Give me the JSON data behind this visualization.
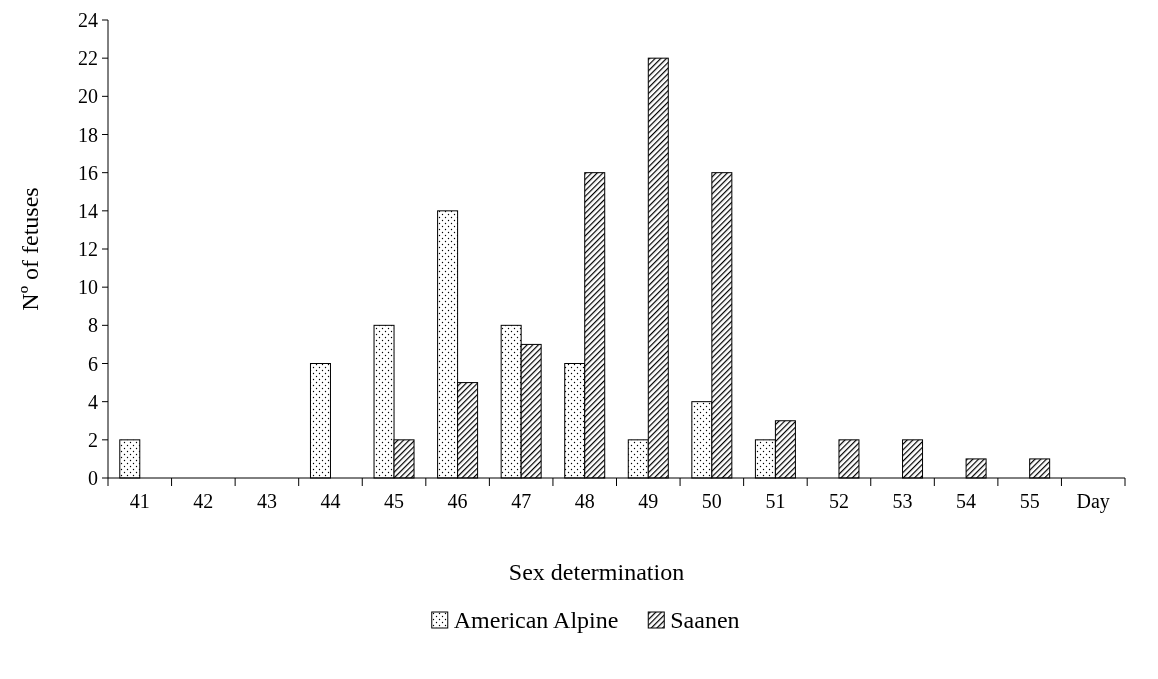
{
  "chart_data": {
    "type": "bar",
    "xlabel": "Sex determination",
    "ylabel": "Nº of fetuses",
    "categories": [
      "41",
      "42",
      "43",
      "44",
      "45",
      "46",
      "47",
      "48",
      "49",
      "50",
      "51",
      "52",
      "53",
      "54",
      "55",
      "Day"
    ],
    "series": [
      {
        "name": "American Alpine",
        "color": "#000000",
        "values": [
          2,
          0,
          0,
          6,
          8,
          14,
          8,
          6,
          2,
          4,
          2,
          0,
          0,
          0,
          0,
          null
        ]
      },
      {
        "name": "Saanen",
        "color": "#000000",
        "values": [
          0,
          0,
          0,
          0,
          2,
          5,
          7,
          16,
          22,
          16,
          3,
          2,
          2,
          1,
          1,
          null
        ]
      }
    ],
    "ylim": [
      0,
      24
    ],
    "yticks": [
      0,
      2,
      4,
      6,
      8,
      10,
      12,
      14,
      16,
      18,
      20,
      22,
      24
    ],
    "grid": false,
    "legend": "bottom"
  }
}
